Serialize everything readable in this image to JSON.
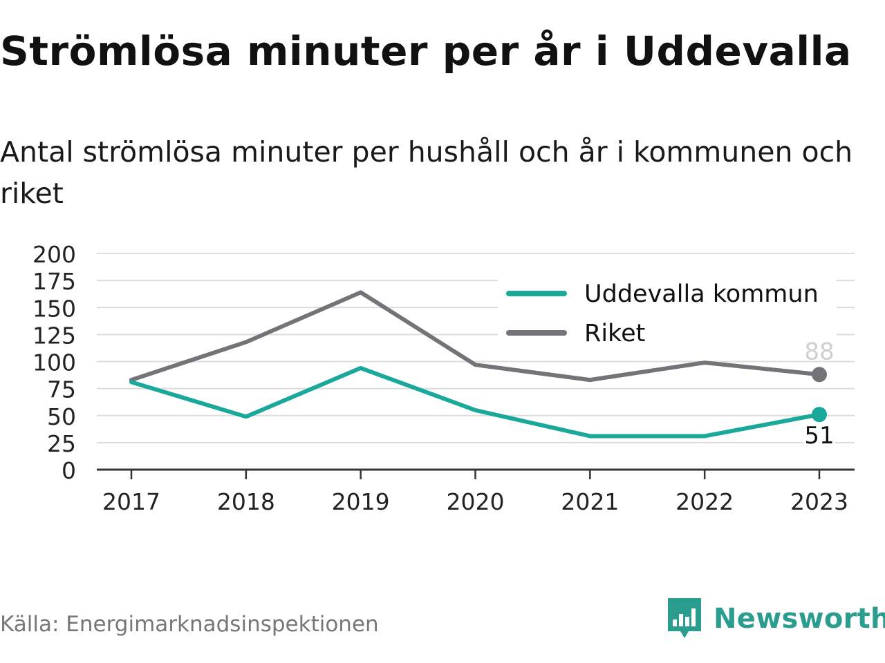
{
  "header": {
    "title": "Strömlösa minuter per år i Uddevalla",
    "subtitle": "Antal strömlösa minuter per hushåll och år i kommunen och riket"
  },
  "footer": {
    "source": "Källa: Energimarknadsinspektionen",
    "brand": "Newsworthy",
    "brand_icon": "bar-chart-speech-bubble-icon",
    "brand_color": "#2a9d8f"
  },
  "chart_data": {
    "type": "line",
    "x": [
      "2017",
      "2018",
      "2019",
      "2020",
      "2021",
      "2022",
      "2023"
    ],
    "ylim": [
      0,
      200
    ],
    "yticks": [
      0,
      25,
      50,
      75,
      100,
      125,
      150,
      175,
      200
    ],
    "grid": true,
    "legend_position": "top-right",
    "series": [
      {
        "name": "Uddevalla kommun",
        "color": "#1aa89a",
        "values": [
          81,
          49,
          94,
          55,
          31,
          31,
          51
        ],
        "end_label": "51"
      },
      {
        "name": "Riket",
        "color": "#737378",
        "values": [
          83,
          118,
          164,
          97,
          83,
          99,
          88
        ],
        "end_label": "88"
      }
    ]
  }
}
